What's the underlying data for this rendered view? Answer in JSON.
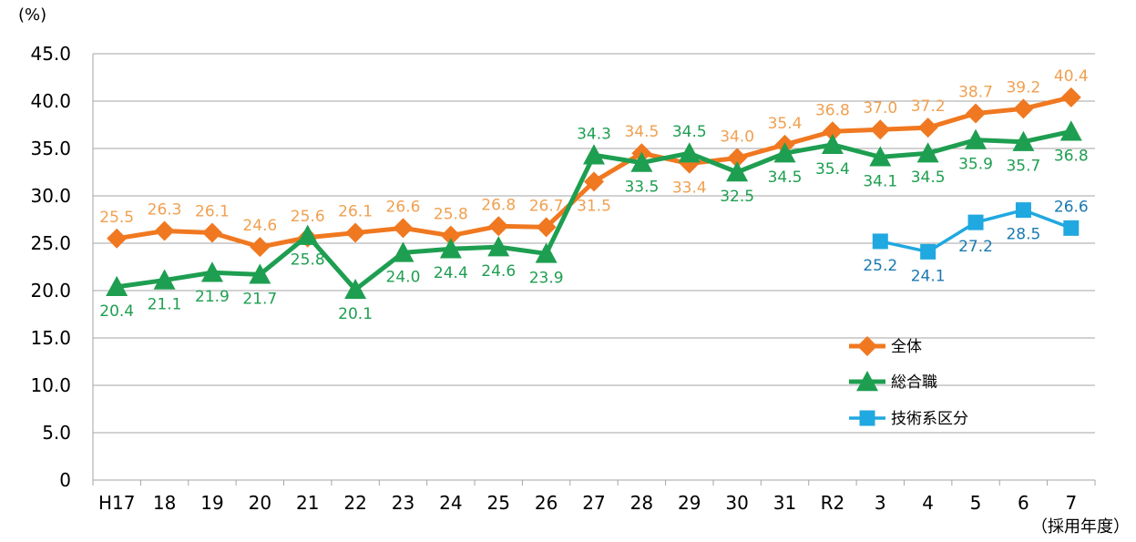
{
  "chart_data": {
    "type": "line",
    "title": "",
    "ylabel": "(%)",
    "xlabel": "（採用年度）",
    "ylim": [
      0,
      45
    ],
    "yticks": [
      "0",
      "5.0",
      "10.0",
      "15.0",
      "20.0",
      "25.0",
      "30.0",
      "35.0",
      "40.0",
      "45.0"
    ],
    "ytick_values": [
      0,
      5,
      10,
      15,
      20,
      25,
      30,
      35,
      40,
      45
    ],
    "grid": true,
    "legend_position": "right",
    "categories": [
      "H17",
      "18",
      "19",
      "20",
      "21",
      "22",
      "23",
      "24",
      "25",
      "26",
      "27",
      "28",
      "29",
      "30",
      "31",
      "R2",
      "3",
      "4",
      "5",
      "6",
      "7"
    ],
    "series": [
      {
        "name": "全体",
        "color": "#F07820",
        "label_color": "#F0A050",
        "marker": "diamond",
        "values": [
          25.5,
          26.3,
          26.1,
          24.6,
          25.6,
          26.1,
          26.6,
          25.8,
          26.8,
          26.7,
          31.5,
          34.5,
          33.4,
          34.0,
          35.4,
          36.8,
          37.0,
          37.2,
          38.7,
          39.2,
          40.4
        ],
        "labels": [
          "25.5",
          "26.3",
          "26.1",
          "24.6",
          "25.6",
          "26.1",
          "26.6",
          "25.8",
          "26.8",
          "26.7",
          "31.5",
          "34.5",
          "33.4",
          "34.0",
          "35.4",
          "36.8",
          "37.0",
          "37.2",
          "38.7",
          "39.2",
          "40.4"
        ]
      },
      {
        "name": "総合職",
        "color": "#1E9E50",
        "label_color": "#1E9E50",
        "marker": "triangle",
        "values": [
          20.4,
          21.1,
          21.9,
          21.7,
          25.8,
          20.1,
          24.0,
          24.4,
          24.6,
          23.9,
          34.3,
          33.5,
          34.5,
          32.5,
          34.5,
          35.4,
          34.1,
          34.5,
          35.9,
          35.7,
          36.8
        ],
        "labels": [
          "20.4",
          "21.1",
          "21.9",
          "21.7",
          "25.8",
          "20.1",
          "24.0",
          "24.4",
          "24.6",
          "23.9",
          "34.3",
          "33.5",
          "34.5",
          "32.5",
          "34.5",
          "35.4",
          "34.1",
          "34.5",
          "35.9",
          "35.7",
          "36.8"
        ]
      },
      {
        "name": "技術系区分",
        "color": "#20A8E0",
        "label_color": "#1A78B0",
        "marker": "square",
        "values": [
          null,
          null,
          null,
          null,
          null,
          null,
          null,
          null,
          null,
          null,
          null,
          null,
          null,
          null,
          null,
          null,
          25.2,
          24.1,
          27.2,
          28.5,
          26.6
        ],
        "labels": [
          null,
          null,
          null,
          null,
          null,
          null,
          null,
          null,
          null,
          null,
          null,
          null,
          null,
          null,
          null,
          null,
          "25.2",
          "24.1",
          "27.2",
          "28.5",
          "26.6"
        ]
      }
    ]
  }
}
